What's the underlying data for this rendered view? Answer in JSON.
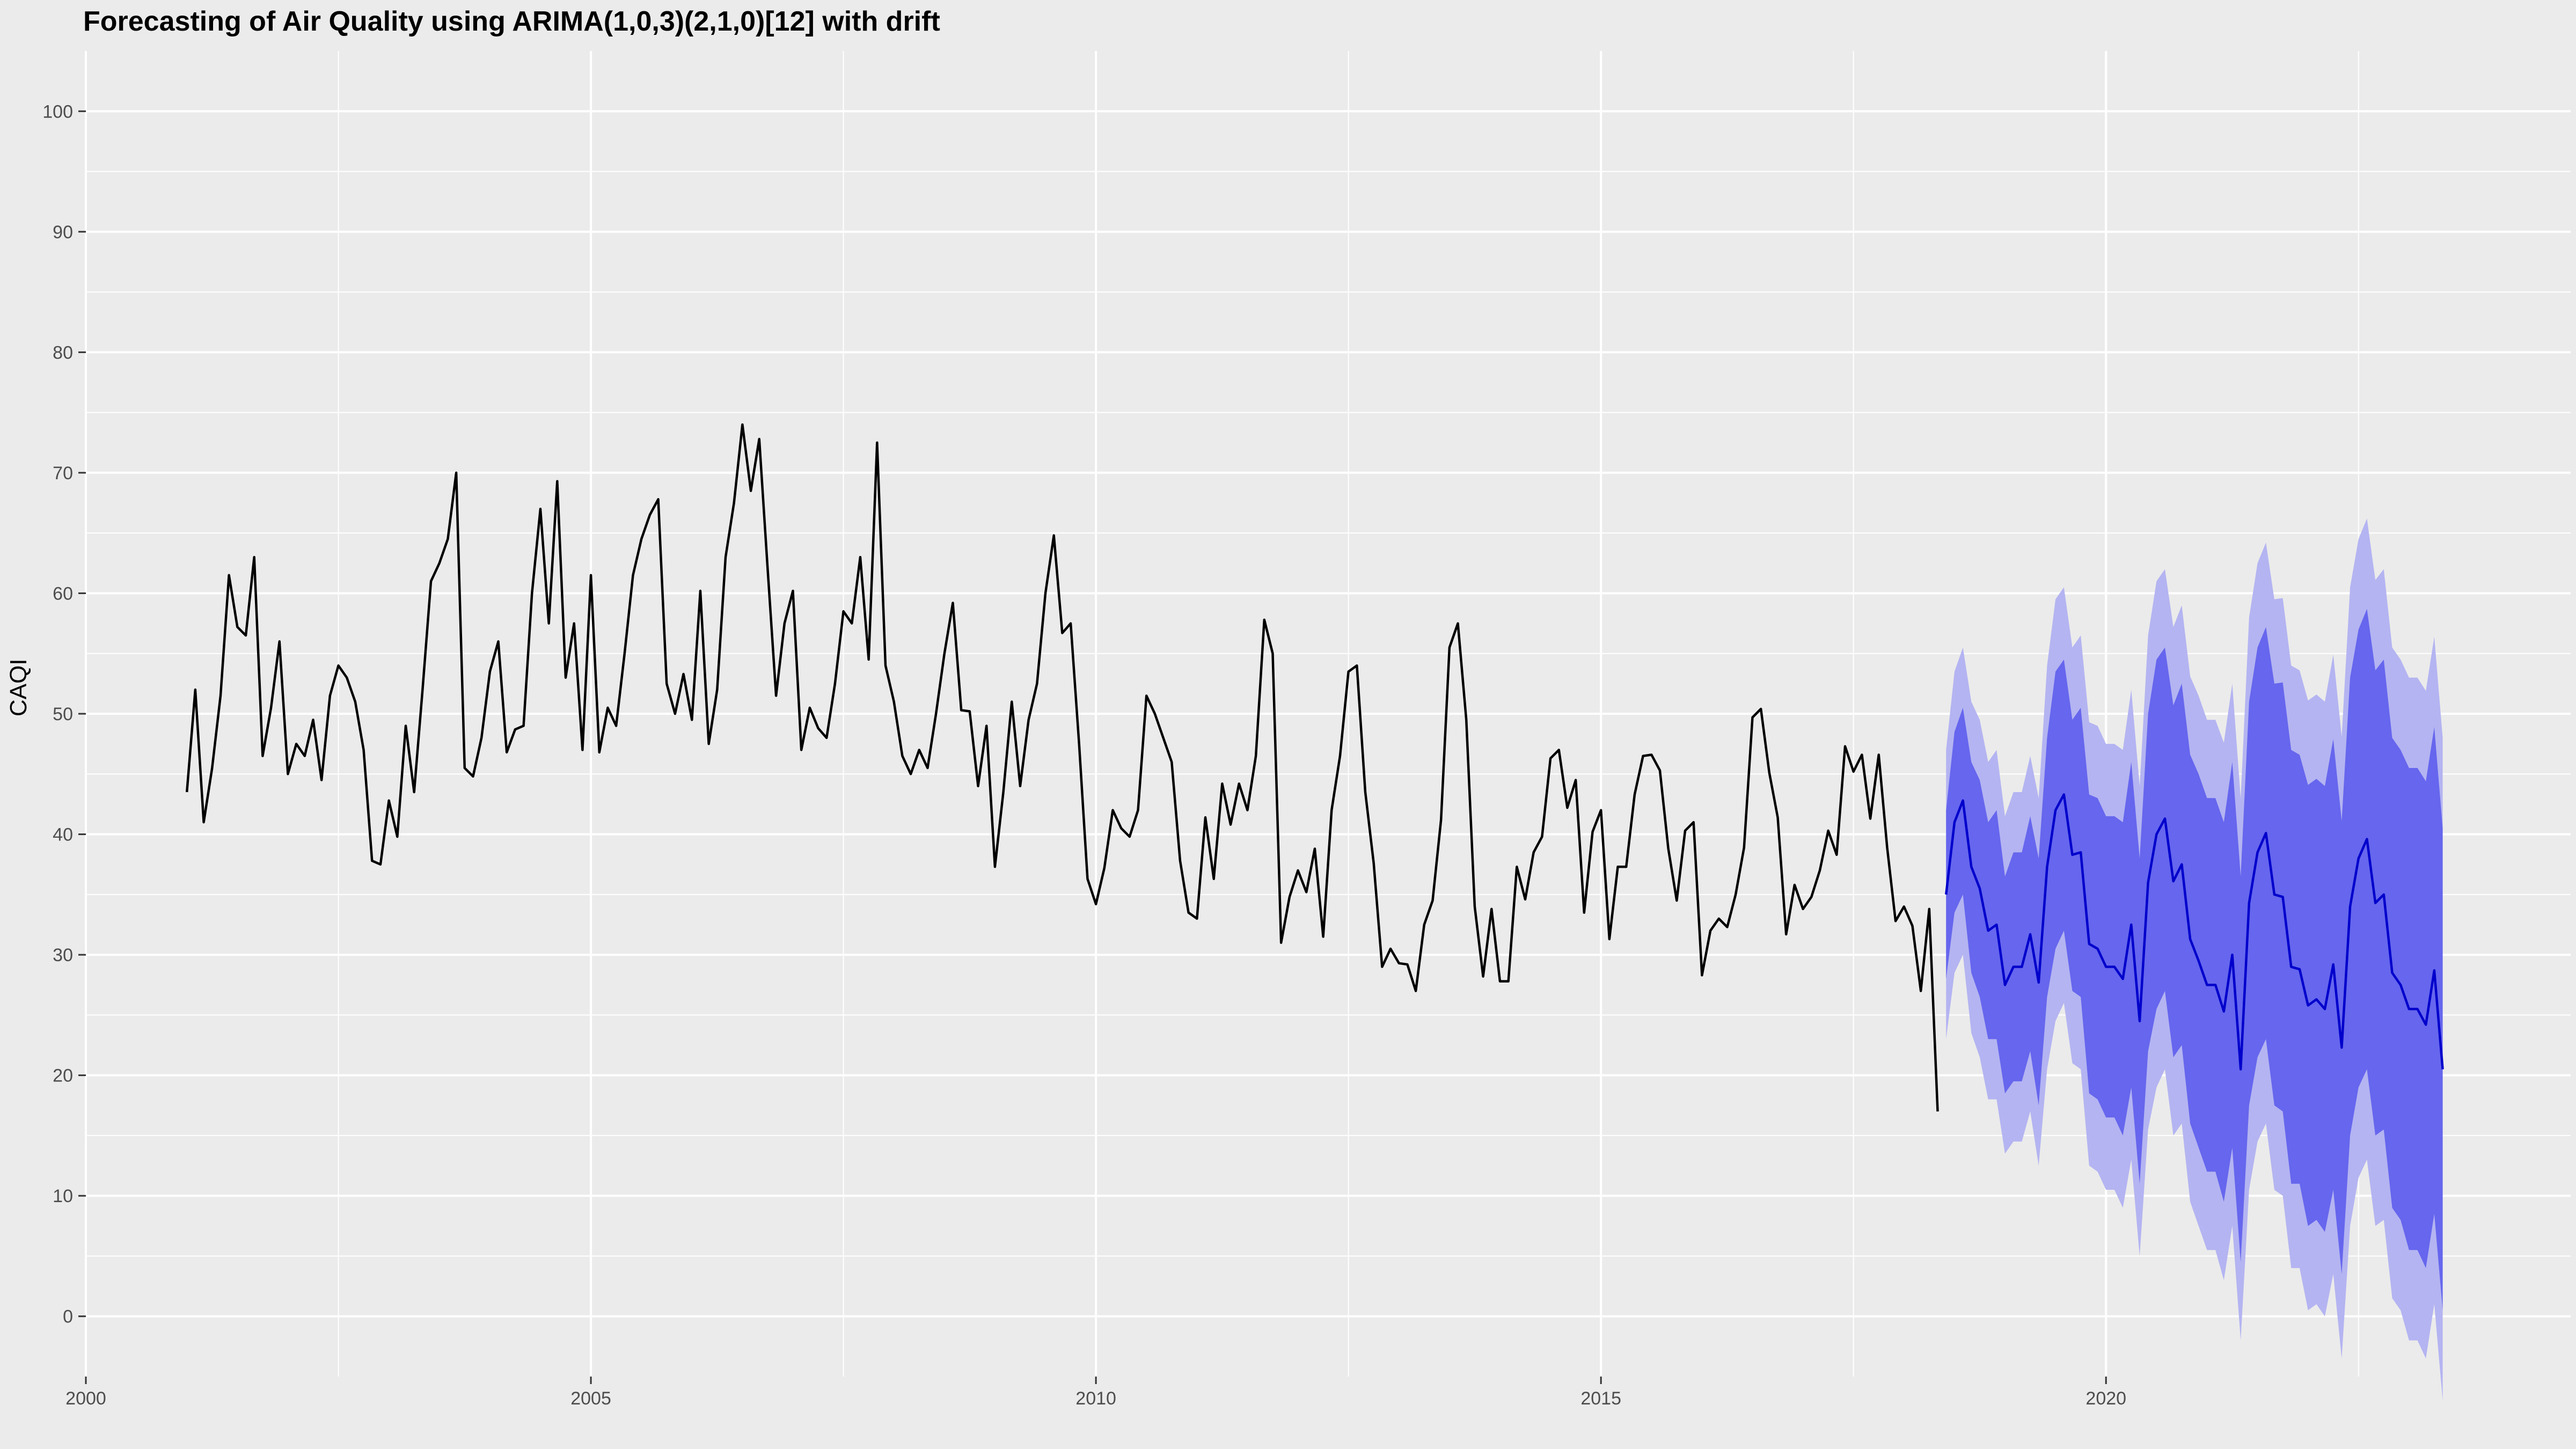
{
  "chart_data": {
    "type": "line",
    "title": "Forecasting of Air Quality using ARIMA(1,0,3)(2,1,0)[12] with drift",
    "xlabel": "",
    "ylabel": "CAQI",
    "xlim": [
      2000,
      2024.6
    ],
    "ylim": [
      -5,
      105
    ],
    "x_ticks": [
      2000,
      2005,
      2010,
      2015,
      2020
    ],
    "y_ticks": [
      0,
      10,
      20,
      30,
      40,
      50,
      60,
      70,
      80,
      90,
      100
    ],
    "x_tick_labels": [
      "2000",
      "2005",
      "2010",
      "2015",
      "2020"
    ],
    "y_tick_labels": [
      "0",
      "10",
      "20",
      "30",
      "40",
      "50",
      "60",
      "70",
      "80",
      "90",
      "100"
    ],
    "grid": true,
    "legend": "none",
    "colors": {
      "panel": "#ebebeb",
      "grid": "#ffffff",
      "observed_line": "#000000",
      "forecast_line": "#0000cc",
      "band_80": "#6666ee",
      "band_95": "#b4b4f2"
    },
    "observed": {
      "start": 2001.0,
      "step": 0.0833333,
      "values": [
        43.5,
        52,
        41,
        45.5,
        51.5,
        61.5,
        57.2,
        56.5,
        63,
        46.5,
        50.5,
        56,
        45,
        47.5,
        46.5,
        49.5,
        44.5,
        51.5,
        54,
        53,
        51,
        47,
        37.8,
        37.5,
        42.8,
        39.8,
        49,
        43.5,
        52,
        61,
        62.5,
        64.5,
        70,
        45.5,
        44.8,
        48,
        53.5,
        56,
        46.8,
        48.7,
        49,
        60,
        67,
        57.5,
        69.3,
        53,
        57.5,
        47,
        61.5,
        46.8,
        50.5,
        49,
        55,
        61.5,
        64.5,
        66.5,
        67.8,
        52.5,
        50,
        53.3,
        49.5,
        60.2,
        47.5,
        52,
        63,
        67.5,
        74,
        68.5,
        72.8,
        62,
        51.5,
        57.5,
        60.2,
        47,
        50.5,
        48.8,
        48,
        52.5,
        58.5,
        57.5,
        63,
        54.5,
        72.5,
        54,
        51,
        46.5,
        45,
        47,
        45.5,
        50,
        55,
        59.2,
        50.3,
        50.2,
        44,
        49,
        37.3,
        43.5,
        51,
        44,
        49.5,
        52.5,
        60,
        64.8,
        56.7,
        57.5,
        47.5,
        36.3,
        34.2,
        37.2,
        42,
        40.5,
        39.8,
        42,
        51.5,
        50,
        48,
        46,
        37.8,
        33.5,
        33,
        41.4,
        36.3,
        44.2,
        40.8,
        44.2,
        42,
        46.5,
        57.8,
        55,
        31,
        34.8,
        37,
        35.2,
        38.8,
        31.5,
        42,
        46.5,
        53.5,
        54,
        43.5,
        37.6,
        29,
        30.5,
        29.3,
        29.2,
        27,
        32.5,
        34.5,
        41.2,
        55.5,
        57.5,
        49.5,
        34,
        28.2,
        33.8,
        27.8,
        27.8,
        37.3,
        34.6,
        38.5,
        39.8,
        46.3,
        47,
        42.2,
        44.5,
        33.5,
        40.2,
        42,
        31.3,
        37.3,
        37.3,
        43.3,
        46.5,
        46.6,
        45.3,
        38.8,
        34.5,
        40.3,
        41,
        28.3,
        32,
        33,
        32.3,
        35,
        38.9,
        49.7,
        50.4,
        45.1,
        41.4,
        31.7,
        35.8,
        33.8,
        34.8,
        37,
        40.3,
        38.3,
        47.3,
        45.2,
        46.6,
        41.3,
        46.6,
        38.9,
        32.8,
        34,
        32.4,
        27,
        33.8,
        17
      ]
    },
    "forecast": {
      "start": 2018.4167,
      "step": 0.0833333,
      "mean": [
        35,
        41,
        42.8,
        37.3,
        35.5,
        32,
        32.5,
        27.5,
        29,
        29,
        31.7,
        27.7,
        37.3,
        42,
        43.3,
        38.3,
        38.5,
        30.9,
        30.5,
        29,
        29,
        28,
        32.5,
        24.5,
        36,
        40,
        41.3,
        36.1,
        37.5,
        31.3,
        29.5,
        27.5,
        27.5,
        25.3,
        30,
        20.5,
        34.3,
        38.5,
        40.1,
        35,
        34.8,
        29,
        28.8,
        25.8,
        26.3,
        25.5,
        29.2,
        22.3,
        34,
        38,
        39.6,
        34.3,
        35,
        28.5,
        27.5,
        25.5,
        25.5,
        24.2,
        28.7,
        20.5
      ],
      "lo80": [
        28,
        33.5,
        35,
        28.5,
        26.5,
        23,
        23,
        18.5,
        19.5,
        19.5,
        22,
        17.5,
        26.5,
        30.5,
        32,
        27,
        26.5,
        18.5,
        18,
        16.5,
        16.5,
        15,
        19,
        11,
        22,
        25.5,
        27,
        21.5,
        22.5,
        16,
        14,
        12,
        12,
        9.5,
        14,
        4.5,
        17.5,
        21.5,
        23,
        17.5,
        17,
        11,
        11,
        7.5,
        8,
        7,
        10.5,
        3.5,
        15,
        19,
        20.5,
        15,
        15.5,
        9,
        8,
        5.5,
        5.5,
        4,
        8.5,
        0.5
      ],
      "hi80": [
        42,
        48.5,
        50.5,
        46,
        44.5,
        41,
        42,
        36.5,
        38.5,
        38.5,
        41.5,
        38,
        48,
        53.5,
        54.5,
        49.5,
        50.5,
        43.3,
        43,
        41.5,
        41.5,
        41,
        46,
        38,
        50,
        54.5,
        55.5,
        50.7,
        52.5,
        46.6,
        45,
        43,
        43,
        41,
        46,
        36.5,
        51,
        55.5,
        57.2,
        52.5,
        52.6,
        47,
        46.6,
        44.1,
        44.6,
        44,
        47.9,
        41.1,
        53,
        57,
        58.7,
        53.6,
        54.5,
        48,
        47,
        45.5,
        45.5,
        44.4,
        48.9,
        40.5
      ],
      "lo95": [
        23,
        28.5,
        30,
        23.5,
        21.5,
        18,
        18,
        13.5,
        14.5,
        14.5,
        17,
        12.5,
        20.5,
        24.5,
        26,
        21,
        20.5,
        12.5,
        12,
        10.5,
        10.5,
        9,
        13,
        5,
        15.5,
        19,
        20.5,
        15,
        16,
        9.5,
        7.5,
        5.5,
        5.5,
        3,
        7.5,
        -2,
        10.5,
        14.5,
        16,
        10.5,
        10,
        4,
        4,
        0.5,
        1,
        0,
        3.5,
        -3.5,
        7.5,
        11.5,
        13,
        7.5,
        8,
        1.5,
        0.5,
        -2,
        -2,
        -3.5,
        1,
        -7
      ],
      "hi95": [
        47,
        53.5,
        55.5,
        51,
        49.5,
        46,
        47,
        41.5,
        43.5,
        43.5,
        46.5,
        43,
        54,
        59.5,
        60.5,
        55.5,
        56.5,
        49.3,
        49,
        47.5,
        47.5,
        47,
        52,
        44,
        56.5,
        61,
        62,
        57.2,
        59,
        53.1,
        51.5,
        49.5,
        49.5,
        47.6,
        52.5,
        43,
        58,
        62.5,
        64.2,
        59.5,
        59.6,
        54,
        53.6,
        51.1,
        51.6,
        51,
        54.9,
        48.1,
        60.5,
        64.5,
        66.2,
        61.1,
        62,
        55.5,
        54.5,
        53,
        53,
        51.9,
        56.4,
        48
      ]
    }
  }
}
